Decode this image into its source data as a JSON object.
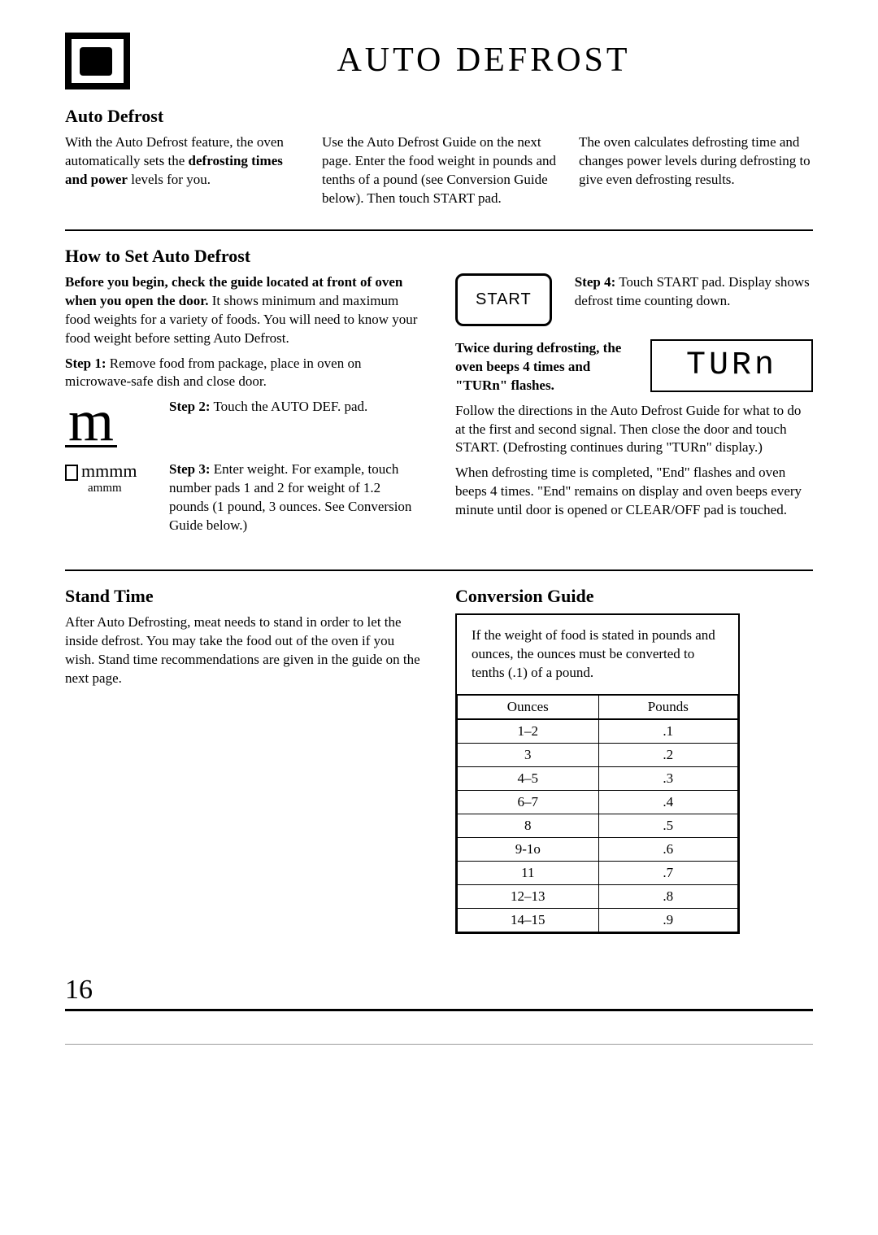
{
  "page": {
    "title": "AUTO DEFROST",
    "number": "16"
  },
  "section1": {
    "heading": "Auto Defrost",
    "col1_a": "With the Auto Defrost feature, the oven automatically sets the ",
    "col1_b": "defrosting times and power",
    "col1_c": " levels for you.",
    "col2": "Use the Auto Defrost Guide on the next page. Enter the food weight in pounds and tenths of a pound (see Conversion Guide below). Then touch START pad.",
    "col3": "The oven calculates defrosting time and changes power levels during defrosting to give even defrosting results."
  },
  "section2": {
    "heading": "How to Set Auto Defrost",
    "intro_b": "Before you begin, check the guide located at front of oven when you open the door.",
    "intro_r": " It shows minimum and maximum food weights for a variety of foods. You will need to know your food weight before setting Auto Defrost.",
    "step1_b": "Step 1:",
    "step1_r": " Remove food from package, place in oven on microwave-safe dish and close door.",
    "step2_b": "Step 2:",
    "step2_r": " Touch the AUTO DEF. pad.",
    "icon2": "m",
    "step3_b": "Step 3:",
    "step3_r": " Enter weight. For example, touch number pads 1 and 2 for weight of 1.2 pounds (1 pound, 3 ounces. See Conversion Guide below.)",
    "icon3_line1": "mmmm",
    "icon3_line2": "ammm",
    "step4_b": "Step 4:",
    "step4_r": " Touch START pad. Display shows defrost time counting down.",
    "start_label": "START",
    "twice_b": "Twice during defrosting, the oven beeps 4 times and \"TURn\" flashes.",
    "twice_r1": " Follow the directions in the Auto Defrost Guide for what to do at the first and second signal. Then close the door and touch START. (Defrosting continues during \"TURn\" display.)",
    "turn_display": "TURn",
    "end_para": "When defrosting time is completed, \"End\" flashes and oven beeps 4 times. \"End\" remains on display and oven beeps every minute until door is opened or CLEAR/OFF pad is touched."
  },
  "section3": {
    "heading": "Stand Time",
    "body": "After Auto Defrosting, meat needs to stand in order to let the inside defrost. You may take the food out of the oven if you wish. Stand time recommendations are given in the guide on the next page."
  },
  "section4": {
    "heading": "Conversion Guide",
    "caption": "If the weight of food is stated in pounds and ounces, the ounces must be converted to tenths (.1) of a pound.",
    "columns": [
      "Ounces",
      "Pounds"
    ],
    "rows": [
      [
        "1–2",
        ".1"
      ],
      [
        "3",
        ".2"
      ],
      [
        "4–5",
        ".3"
      ],
      [
        "6–7",
        ".4"
      ],
      [
        "8",
        ".5"
      ],
      [
        "9-1o",
        ".6"
      ],
      [
        "11",
        ".7"
      ],
      [
        "12–13",
        ".8"
      ],
      [
        "14–15",
        ".9"
      ]
    ]
  }
}
